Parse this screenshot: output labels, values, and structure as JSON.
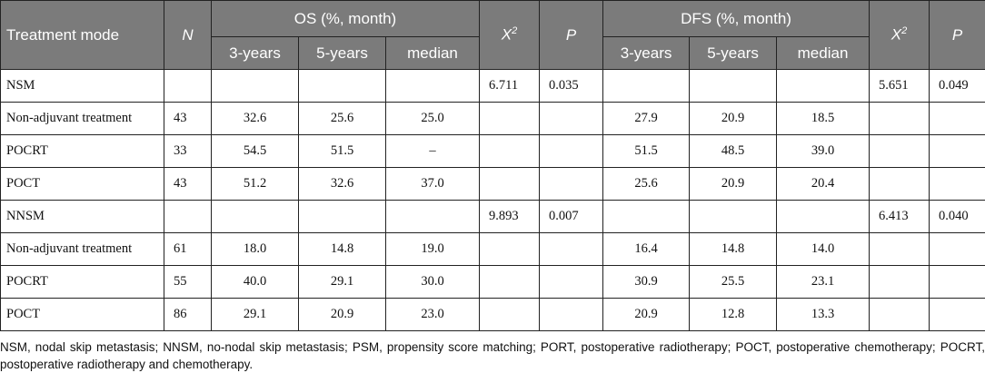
{
  "header": {
    "treatment_mode": "Treatment mode",
    "n": "N",
    "os_group": "OS (%, month)",
    "x2_base": "X",
    "x2_sup": "2",
    "p": "P",
    "dfs_group": "DFS (%, month)",
    "sub": [
      "3-years",
      "5-years",
      "median"
    ]
  },
  "rows": [
    {
      "label": "NSM",
      "n": "",
      "os3": "",
      "os5": "",
      "osm": "",
      "x2a": "6.711",
      "pa": "0.035",
      "dfs3": "",
      "dfs5": "",
      "dfsm": "",
      "x2b": "5.651",
      "pb": "0.049"
    },
    {
      "label": "Non-adjuvant treatment",
      "n": "43",
      "os3": "32.6",
      "os5": "25.6",
      "osm": "25.0",
      "x2a": "",
      "pa": "",
      "dfs3": "27.9",
      "dfs5": "20.9",
      "dfsm": "18.5",
      "x2b": "",
      "pb": ""
    },
    {
      "label": "POCRT",
      "n": "33",
      "os3": "54.5",
      "os5": "51.5",
      "osm": "–",
      "x2a": "",
      "pa": "",
      "dfs3": "51.5",
      "dfs5": "48.5",
      "dfsm": "39.0",
      "x2b": "",
      "pb": ""
    },
    {
      "label": "POCT",
      "n": "43",
      "os3": "51.2",
      "os5": "32.6",
      "osm": "37.0",
      "x2a": "",
      "pa": "",
      "dfs3": "25.6",
      "dfs5": "20.9",
      "dfsm": "20.4",
      "x2b": "",
      "pb": ""
    },
    {
      "label": "NNSM",
      "n": "",
      "os3": "",
      "os5": "",
      "osm": "",
      "x2a": "9.893",
      "pa": "0.007",
      "dfs3": "",
      "dfs5": "",
      "dfsm": "",
      "x2b": "6.413",
      "pb": "0.040"
    },
    {
      "label": "Non-adjuvant treatment",
      "n": "61",
      "os3": "18.0",
      "os5": "14.8",
      "osm": "19.0",
      "x2a": "",
      "pa": "",
      "dfs3": "16.4",
      "dfs5": "14.8",
      "dfsm": "14.0",
      "x2b": "",
      "pb": ""
    },
    {
      "label": "POCRT",
      "n": "55",
      "os3": "40.0",
      "os5": "29.1",
      "osm": "30.0",
      "x2a": "",
      "pa": "",
      "dfs3": "30.9",
      "dfs5": "25.5",
      "dfsm": "23.1",
      "x2b": "",
      "pb": ""
    },
    {
      "label": "POCT",
      "n": "86",
      "os3": "29.1",
      "os5": "20.9",
      "osm": "23.0",
      "x2a": "",
      "pa": "",
      "dfs3": "20.9",
      "dfs5": "12.8",
      "dfsm": "13.3",
      "x2b": "",
      "pb": ""
    }
  ],
  "footnote": "NSM, nodal skip metastasis; NNSM, no-nodal skip metastasis; PSM, propensity score matching; PORT, postoperative radiotherapy; POCT, postoperative chemotherapy; POCRT, postoperative radiotherapy and chemotherapy.",
  "colors": {
    "header_bg": "#7b7b7b",
    "header_text": "#ffffff",
    "border": "#222222"
  }
}
